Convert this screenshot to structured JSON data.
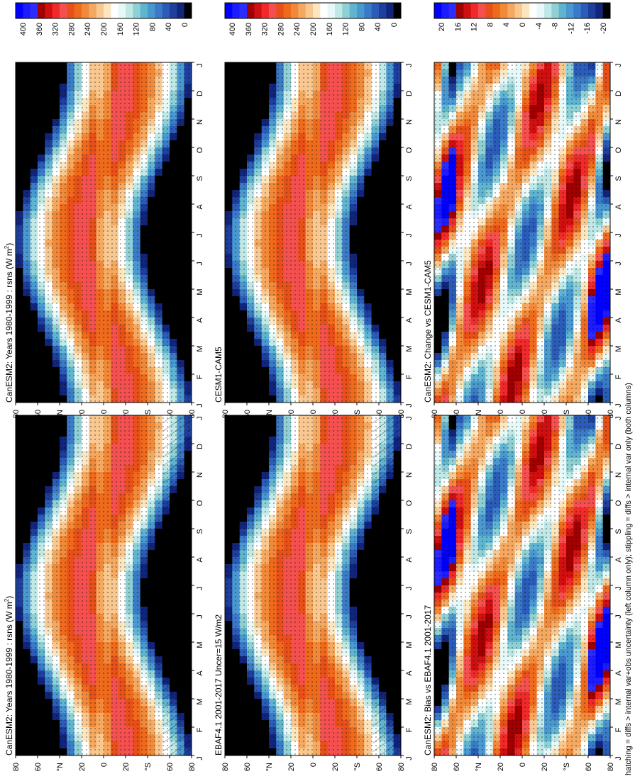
{
  "figure": {
    "footer": "hatching = diffs > internal var+obs uncertainty (left column only); stippling = diffs > internal var only (both columns)"
  },
  "axes": {
    "months": [
      "J",
      "F",
      "M",
      "A",
      "M",
      "J",
      "J",
      "A",
      "S",
      "O",
      "N",
      "D",
      "J"
    ],
    "lat_ticks": [
      "80",
      "60",
      "°N",
      "20",
      "0",
      "20",
      "°S",
      "60",
      "80"
    ]
  },
  "colorbars": {
    "abs": {
      "labels": [
        "400",
        "360",
        "320",
        "280",
        "240",
        "200",
        "160",
        "120",
        "80",
        "40",
        "0"
      ],
      "colors": [
        "#0000ff",
        "#1c1cff",
        "#2c2cff",
        "#a00000",
        "#d01010",
        "#f02a2a",
        "#f45050",
        "#e8501a",
        "#ee6a1c",
        "#f08a3a",
        "#f4a860",
        "#f8c890",
        "#fce6c0",
        "#ffffff",
        "#e6f8f8",
        "#bfe8e6",
        "#8fd0d4",
        "#5fb4d0",
        "#4a98d0",
        "#3a7ac6",
        "#2a5cb8",
        "#1e3f9c",
        "#12257c",
        "#000000"
      ]
    },
    "diff": {
      "labels": [
        "20",
        "16",
        "12",
        "8",
        "4",
        "0",
        "-4",
        "-8",
        "-12",
        "-16",
        "-20"
      ],
      "colors": [
        "#0000ff",
        "#1c1cff",
        "#2c2cff",
        "#a00000",
        "#d01010",
        "#f02a2a",
        "#f45050",
        "#e8501a",
        "#ee6a1c",
        "#f08a3a",
        "#f4a860",
        "#f8c890",
        "#fce6c0",
        "#ffffff",
        "#e6f8f8",
        "#bfe8e6",
        "#8fd0d4",
        "#5fb4d0",
        "#4a98d0",
        "#3a7ac6",
        "#2a5cb8",
        "#1e3f9c",
        "#12257c",
        "#000000"
      ]
    }
  },
  "panels": [
    {
      "id": "left-top",
      "title": "CanESM2: Years 1980-1999 : rsns (W m",
      "title_sup": "2",
      "title_end": ")",
      "colorbar": "abs",
      "hatching": true
    },
    {
      "id": "right-top",
      "title": "CanESM2: Years 1980-1999 : rsns (W m",
      "title_sup": "2",
      "title_end": ")",
      "colorbar": "abs",
      "hatching": false
    },
    {
      "id": "left-mid",
      "title": "EBAF4.1 2001-2017 Uncer=15 W/m2",
      "title_sup": "",
      "title_end": "",
      "colorbar": "abs",
      "hatching": true
    },
    {
      "id": "right-mid",
      "title": "CESM1-CAM5",
      "title_sup": "",
      "title_end": "",
      "colorbar": "abs",
      "hatching": false
    },
    {
      "id": "left-bottom",
      "title": "CanESM2: Bias vs EBAF4.1 2001-2017",
      "title_sup": "",
      "title_end": "",
      "colorbar": "diff",
      "hatching": false
    },
    {
      "id": "right-bottom",
      "title": "CanESM2: Change vs CESM1-CAM5",
      "title_sup": "",
      "title_end": "",
      "colorbar": "diff",
      "hatching": false
    }
  ],
  "chart_data": [
    {
      "type": "heatmap",
      "title": "CanESM2: Years 1980-1999 : rsns (W m-2)",
      "x": "month (J–J)",
      "y": "latitude (80°N–80°S)",
      "colorbar_range": [
        0,
        400
      ],
      "colorbar_step": 40,
      "peak_region": "20°S austral summer (~300)",
      "trough_region": "polar night (~0)"
    },
    {
      "type": "heatmap",
      "title": "CanESM2: Years 1980-1999 : rsns (W m-2)",
      "colorbar_range": [
        0,
        400
      ],
      "colorbar_step": 40
    },
    {
      "type": "heatmap",
      "title": "EBAF4.1 2001-2017 Uncer=15 W/m2",
      "colorbar_range": [
        0,
        400
      ],
      "colorbar_step": 40
    },
    {
      "type": "heatmap",
      "title": "CESM1-CAM5",
      "colorbar_range": [
        0,
        400
      ],
      "colorbar_step": 40
    },
    {
      "type": "heatmap",
      "title": "CanESM2: Bias vs EBAF4.1 2001-2017",
      "colorbar_range": [
        -20,
        20
      ],
      "colorbar_step": 4
    },
    {
      "type": "heatmap",
      "title": "CanESM2: Change vs CESM1-CAM5",
      "colorbar_range": [
        -20,
        20
      ],
      "colorbar_step": 4
    }
  ]
}
